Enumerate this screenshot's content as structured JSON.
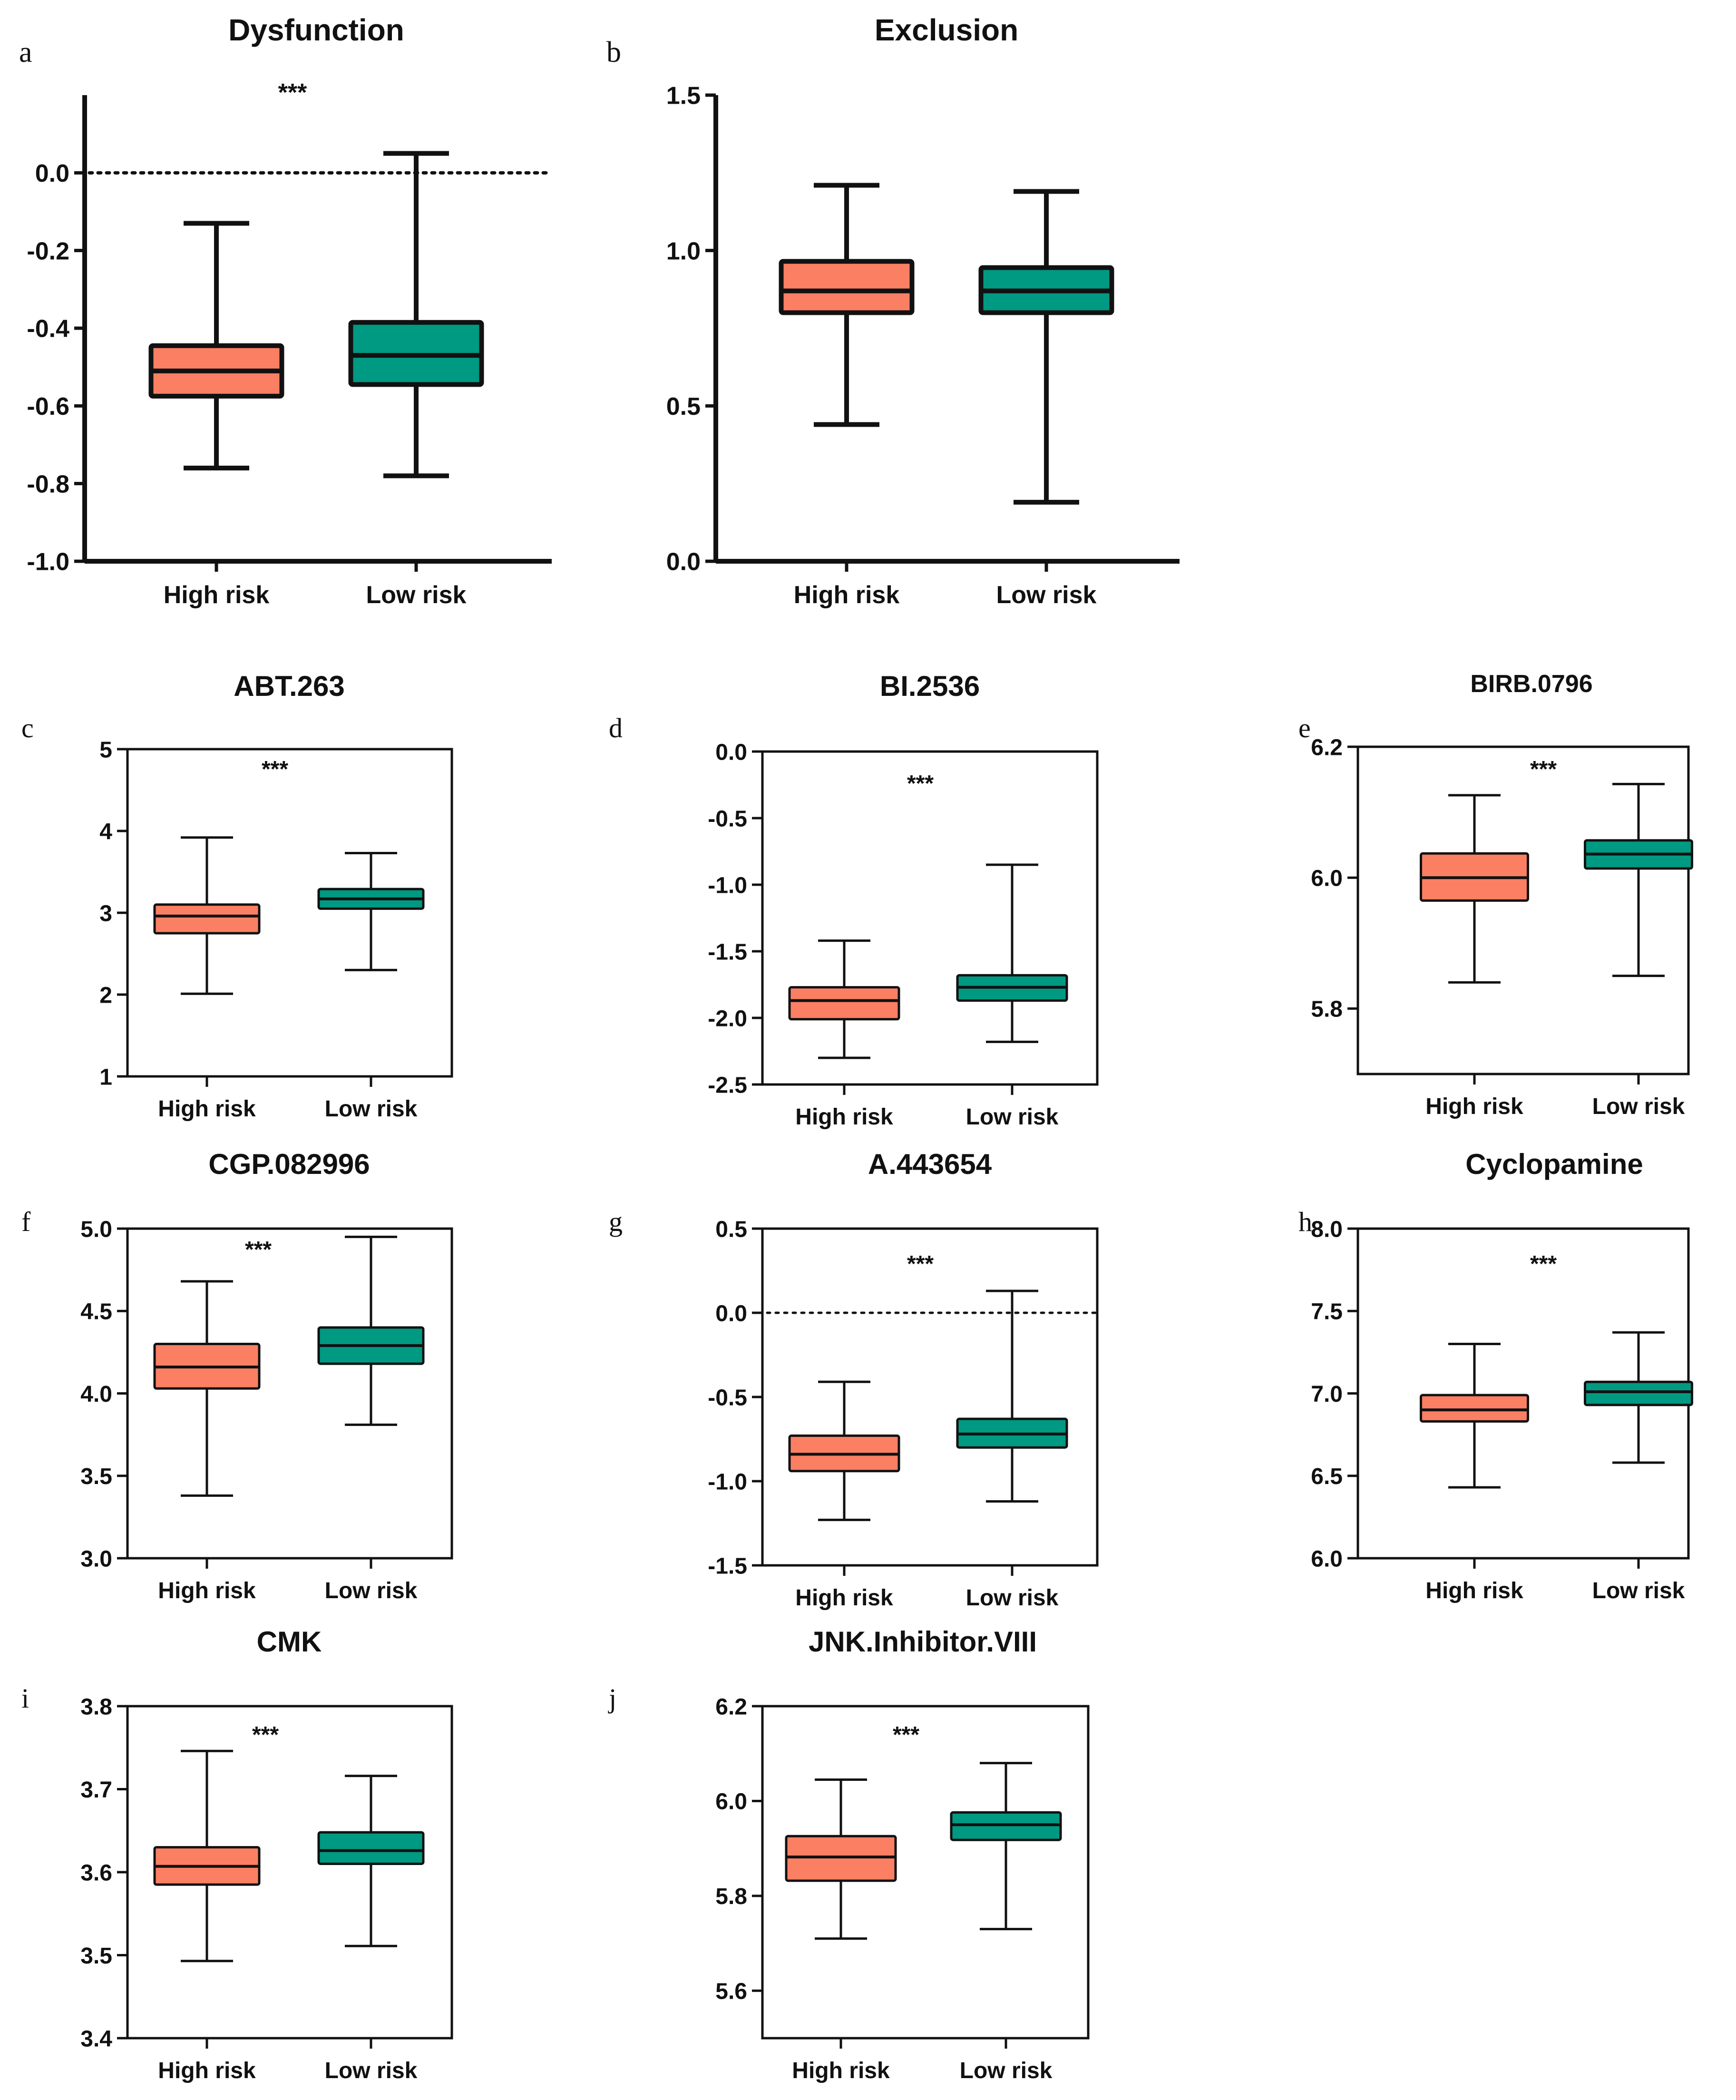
{
  "colors": {
    "high_risk": "#FA7F63",
    "low_risk": "#009982",
    "ink": "#111111"
  },
  "chart_data": [
    {
      "id": "a",
      "panel_label": "a",
      "type": "boxplot",
      "title": "Dysfunction",
      "ylim": [
        -1.0,
        0.2
      ],
      "yticks": [
        0.0,
        -0.2,
        -0.4,
        -0.6,
        -0.8,
        -1.0
      ],
      "ytick_labels": [
        "0.0",
        "-0.2",
        "-0.4",
        "-0.6",
        "-0.8",
        "-1.0"
      ],
      "refline": 0.0,
      "significance": "***",
      "axis_style": "open",
      "categories": [
        "High risk",
        "Low risk"
      ],
      "series": [
        {
          "name": "High risk",
          "min": -0.76,
          "q1": -0.575,
          "median": -0.51,
          "q3": -0.445,
          "max": -0.13
        },
        {
          "name": "Low risk",
          "min": -0.78,
          "q1": -0.545,
          "median": -0.47,
          "q3": -0.385,
          "max": 0.05
        }
      ]
    },
    {
      "id": "b",
      "panel_label": "b",
      "type": "boxplot",
      "title": "Exclusion",
      "ylim": [
        0.0,
        1.5
      ],
      "yticks": [
        1.5,
        1.0,
        0.5,
        0.0
      ],
      "ytick_labels": [
        "1.5",
        "1.0",
        "0.5",
        "0.0"
      ],
      "refline": null,
      "significance": "",
      "axis_style": "open",
      "categories": [
        "High risk",
        "Low risk"
      ],
      "series": [
        {
          "name": "High risk",
          "min": 0.44,
          "q1": 0.8,
          "median": 0.87,
          "q3": 0.965,
          "max": 1.21
        },
        {
          "name": "Low risk",
          "min": 0.19,
          "q1": 0.8,
          "median": 0.87,
          "q3": 0.945,
          "max": 1.19
        }
      ]
    },
    {
      "id": "c",
      "panel_label": "c",
      "type": "boxplot",
      "title": "ABT.263",
      "ylim": [
        1,
        5
      ],
      "yticks": [
        5,
        4,
        3,
        2,
        1
      ],
      "ytick_labels": [
        "5",
        "4",
        "3",
        "2",
        "1"
      ],
      "refline": null,
      "significance": "***",
      "axis_style": "box",
      "categories": [
        "High risk",
        "Low risk"
      ],
      "series": [
        {
          "name": "High risk",
          "min": 2.01,
          "q1": 2.75,
          "median": 2.96,
          "q3": 3.1,
          "max": 3.92
        },
        {
          "name": "Low risk",
          "min": 2.3,
          "q1": 3.05,
          "median": 3.17,
          "q3": 3.29,
          "max": 3.73
        }
      ]
    },
    {
      "id": "d",
      "panel_label": "d",
      "type": "boxplot",
      "title": "BI.2536",
      "ylim": [
        -2.5,
        0.0
      ],
      "yticks": [
        0.0,
        -0.5,
        -1.0,
        -1.5,
        -2.0,
        -2.5
      ],
      "ytick_labels": [
        "0.0",
        "-0.5",
        "-1.0",
        "-1.5",
        "-2.0",
        "-2.5"
      ],
      "refline": null,
      "significance": "***",
      "axis_style": "box",
      "categories": [
        "High risk",
        "Low risk"
      ],
      "series": [
        {
          "name": "High risk",
          "min": -2.3,
          "q1": -2.01,
          "median": -1.87,
          "q3": -1.77,
          "max": -1.42
        },
        {
          "name": "Low risk",
          "min": -2.18,
          "q1": -1.87,
          "median": -1.77,
          "q3": -1.68,
          "max": -0.85
        }
      ]
    },
    {
      "id": "e",
      "panel_label": "e",
      "type": "boxplot",
      "title": "BIRB.0796",
      "ylim": [
        5.7,
        6.2
      ],
      "yticks": [
        6.2,
        6.0,
        5.8
      ],
      "ytick_labels": [
        "6.2",
        "6.0",
        "5.8"
      ],
      "refline": null,
      "significance": "***",
      "axis_style": "box",
      "categories": [
        "High risk",
        "Low risk"
      ],
      "series": [
        {
          "name": "High risk",
          "min": 5.84,
          "q1": 5.965,
          "median": 6.0,
          "q3": 6.037,
          "max": 6.126
        },
        {
          "name": "Low risk",
          "min": 5.85,
          "q1": 6.014,
          "median": 6.036,
          "q3": 6.057,
          "max": 6.143
        }
      ]
    },
    {
      "id": "f",
      "panel_label": "f",
      "type": "boxplot",
      "title": "CGP.082996",
      "ylim": [
        3.0,
        5.0
      ],
      "yticks": [
        5.0,
        4.5,
        4.0,
        3.5,
        3.0
      ],
      "ytick_labels": [
        "5.0",
        "4.5",
        "4.0",
        "3.5",
        "3.0"
      ],
      "refline": null,
      "significance": "***",
      "axis_style": "box",
      "categories": [
        "High risk",
        "Low risk"
      ],
      "series": [
        {
          "name": "High risk",
          "min": 3.38,
          "q1": 4.03,
          "median": 4.16,
          "q3": 4.3,
          "max": 4.68
        },
        {
          "name": "Low risk",
          "min": 3.81,
          "q1": 4.18,
          "median": 4.29,
          "q3": 4.4,
          "max": 4.95
        }
      ]
    },
    {
      "id": "g",
      "panel_label": "g",
      "type": "boxplot",
      "title": "A.443654",
      "ylim": [
        -1.5,
        0.5
      ],
      "yticks": [
        0.5,
        0.0,
        -0.5,
        -1.0,
        -1.5
      ],
      "ytick_labels": [
        "0.5",
        "0.0",
        "-0.5",
        "-1.0",
        "-1.5"
      ],
      "refline": 0.0,
      "significance": "***",
      "axis_style": "box",
      "categories": [
        "High risk",
        "Low risk"
      ],
      "series": [
        {
          "name": "High risk",
          "min": -1.23,
          "q1": -0.94,
          "median": -0.84,
          "q3": -0.73,
          "max": -0.41
        },
        {
          "name": "Low risk",
          "min": -1.12,
          "q1": -0.8,
          "median": -0.72,
          "q3": -0.63,
          "max": 0.13
        }
      ]
    },
    {
      "id": "h",
      "panel_label": "h",
      "type": "boxplot",
      "title": "Cyclopamine",
      "ylim": [
        6.0,
        8.0
      ],
      "yticks": [
        8.0,
        7.5,
        7.0,
        6.5,
        6.0
      ],
      "ytick_labels": [
        "8.0",
        "7.5",
        "7.0",
        "6.5",
        "6.0"
      ],
      "refline": null,
      "significance": "***",
      "axis_style": "box",
      "categories": [
        "High risk",
        "Low risk"
      ],
      "series": [
        {
          "name": "High risk",
          "min": 6.43,
          "q1": 6.83,
          "median": 6.9,
          "q3": 6.99,
          "max": 7.3
        },
        {
          "name": "Low risk",
          "min": 6.58,
          "q1": 6.93,
          "median": 7.01,
          "q3": 7.07,
          "max": 7.37
        }
      ]
    },
    {
      "id": "i",
      "panel_label": "i",
      "type": "boxplot",
      "title": "CMK",
      "ylim": [
        3.4,
        3.8
      ],
      "yticks": [
        3.8,
        3.7,
        3.6,
        3.5,
        3.4
      ],
      "ytick_labels": [
        "3.8",
        "3.7",
        "3.6",
        "3.5",
        "3.4"
      ],
      "refline": null,
      "significance": "***",
      "axis_style": "box",
      "categories": [
        "High risk",
        "Low risk"
      ],
      "series": [
        {
          "name": "High risk",
          "min": 3.493,
          "q1": 3.585,
          "median": 3.607,
          "q3": 3.63,
          "max": 3.746
        },
        {
          "name": "Low risk",
          "min": 3.511,
          "q1": 3.61,
          "median": 3.626,
          "q3": 3.648,
          "max": 3.716
        }
      ]
    },
    {
      "id": "j",
      "panel_label": "j",
      "type": "boxplot",
      "title": "JNK.Inhibitor.VIII",
      "ylim": [
        5.5,
        6.2
      ],
      "yticks": [
        6.2,
        6.0,
        5.8,
        5.6
      ],
      "ytick_labels": [
        "6.2",
        "6.0",
        "5.8",
        "5.6"
      ],
      "refline": null,
      "significance": "***",
      "axis_style": "box",
      "categories": [
        "High risk",
        "Low risk"
      ],
      "series": [
        {
          "name": "High risk",
          "min": 5.71,
          "q1": 5.832,
          "median": 5.882,
          "q3": 5.926,
          "max": 6.045
        },
        {
          "name": "Low risk",
          "min": 5.73,
          "q1": 5.918,
          "median": 5.95,
          "q3": 5.976,
          "max": 6.08
        }
      ]
    }
  ]
}
